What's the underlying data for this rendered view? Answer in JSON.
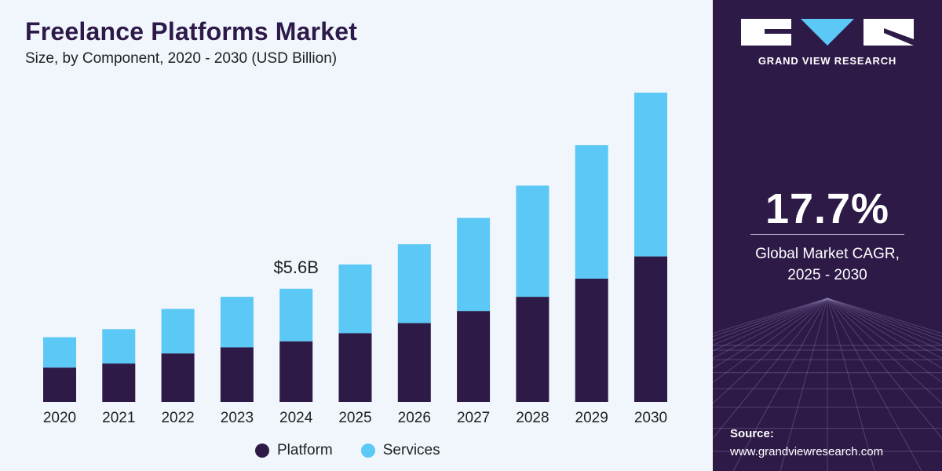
{
  "header": {
    "title": "Freelance Platforms Market",
    "subtitle": "Size, by Component, 2020 - 2030 (USD Billion)"
  },
  "chart_data": {
    "type": "bar",
    "stacked": true,
    "categories": [
      "2020",
      "2021",
      "2022",
      "2023",
      "2024",
      "2025",
      "2026",
      "2027",
      "2028",
      "2029",
      "2030"
    ],
    "series": [
      {
        "name": "Platform",
        "color": "#2e1a47",
        "values": [
          1.7,
          1.9,
          2.4,
          2.7,
          3.0,
          3.4,
          3.9,
          4.5,
          5.2,
          6.1,
          7.2
        ]
      },
      {
        "name": "Services",
        "color": "#5bc8f5",
        "values": [
          1.5,
          1.7,
          2.2,
          2.5,
          2.6,
          3.4,
          3.9,
          4.6,
          5.5,
          6.6,
          8.1
        ]
      }
    ],
    "annotations": [
      {
        "category": "2024",
        "label": "$5.6B"
      }
    ],
    "ylim": [
      0,
      16
    ],
    "legend_position": "bottom"
  },
  "sidebar": {
    "brand": "GRAND VIEW RESEARCH",
    "cagr_value": "17.7%",
    "cagr_label_line1": "Global Market CAGR,",
    "cagr_label_line2": "2025 - 2030",
    "source_label": "Source:",
    "source_url": "www.grandviewresearch.com"
  }
}
